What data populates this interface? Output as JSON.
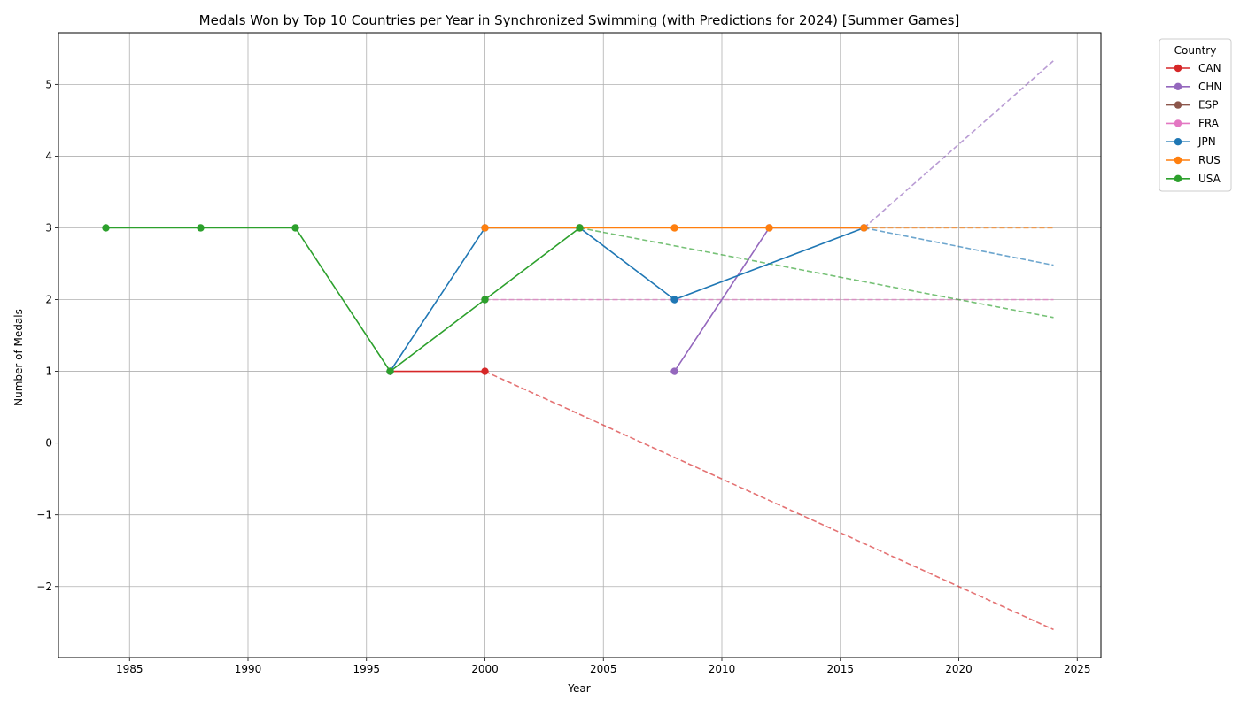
{
  "chart_data": {
    "type": "line",
    "title": "Medals Won by Top 10 Countries per Year in Synchronized Swimming (with Predictions for 2024) [Summer Games]",
    "xlabel": "Year",
    "ylabel": "Number of Medals",
    "xlim": [
      1982,
      2026
    ],
    "ylim": [
      -2.99,
      5.72
    ],
    "xticks": [
      1985,
      1990,
      1995,
      2000,
      2005,
      2010,
      2015,
      2020,
      2025
    ],
    "yticks": [
      -2,
      -1,
      0,
      1,
      2,
      3,
      4,
      5
    ],
    "ytick_labels": [
      "−2",
      "−1",
      "0",
      "1",
      "2",
      "3",
      "4",
      "5"
    ],
    "grid": true,
    "legend_title": "Country",
    "legend_position": "outside-top-right",
    "series": [
      {
        "name": "CAN",
        "color": "#d62728",
        "x": [
          1996,
          2000
        ],
        "y": [
          1,
          1
        ],
        "prediction": {
          "x": [
            2000,
            2024
          ],
          "y": [
            1,
            -2.6
          ]
        }
      },
      {
        "name": "CHN",
        "color": "#9467bd",
        "x": [
          2008,
          2012,
          2016
        ],
        "y": [
          1,
          3,
          3
        ],
        "prediction": {
          "x": [
            2016,
            2024
          ],
          "y": [
            3,
            5.33
          ]
        }
      },
      {
        "name": "ESP",
        "color": "#8c564b",
        "x": [],
        "y": [],
        "prediction": null
      },
      {
        "name": "FRA",
        "color": "#e377c2",
        "x": [
          2000
        ],
        "y": [
          2
        ],
        "prediction": {
          "x": [
            2000,
            2024
          ],
          "y": [
            2,
            2
          ]
        }
      },
      {
        "name": "JPN",
        "color": "#1f77b4",
        "x": [
          1996,
          2000,
          2004,
          2008,
          2016
        ],
        "y": [
          1,
          3,
          3,
          2,
          3
        ],
        "prediction": {
          "x": [
            2016,
            2024
          ],
          "y": [
            3,
            2.48
          ]
        }
      },
      {
        "name": "RUS",
        "color": "#ff7f0e",
        "x": [
          2000,
          2004,
          2008,
          2012,
          2016
        ],
        "y": [
          3,
          3,
          3,
          3,
          3
        ],
        "prediction": {
          "x": [
            2016,
            2024
          ],
          "y": [
            3,
            3
          ]
        }
      },
      {
        "name": "USA",
        "color": "#2ca02c",
        "x": [
          1984,
          1988,
          1992,
          1996,
          2000,
          2004
        ],
        "y": [
          3,
          3,
          3,
          1,
          2,
          3
        ],
        "prediction": {
          "x": [
            2004,
            2024
          ],
          "y": [
            3,
            1.75
          ]
        }
      }
    ]
  }
}
